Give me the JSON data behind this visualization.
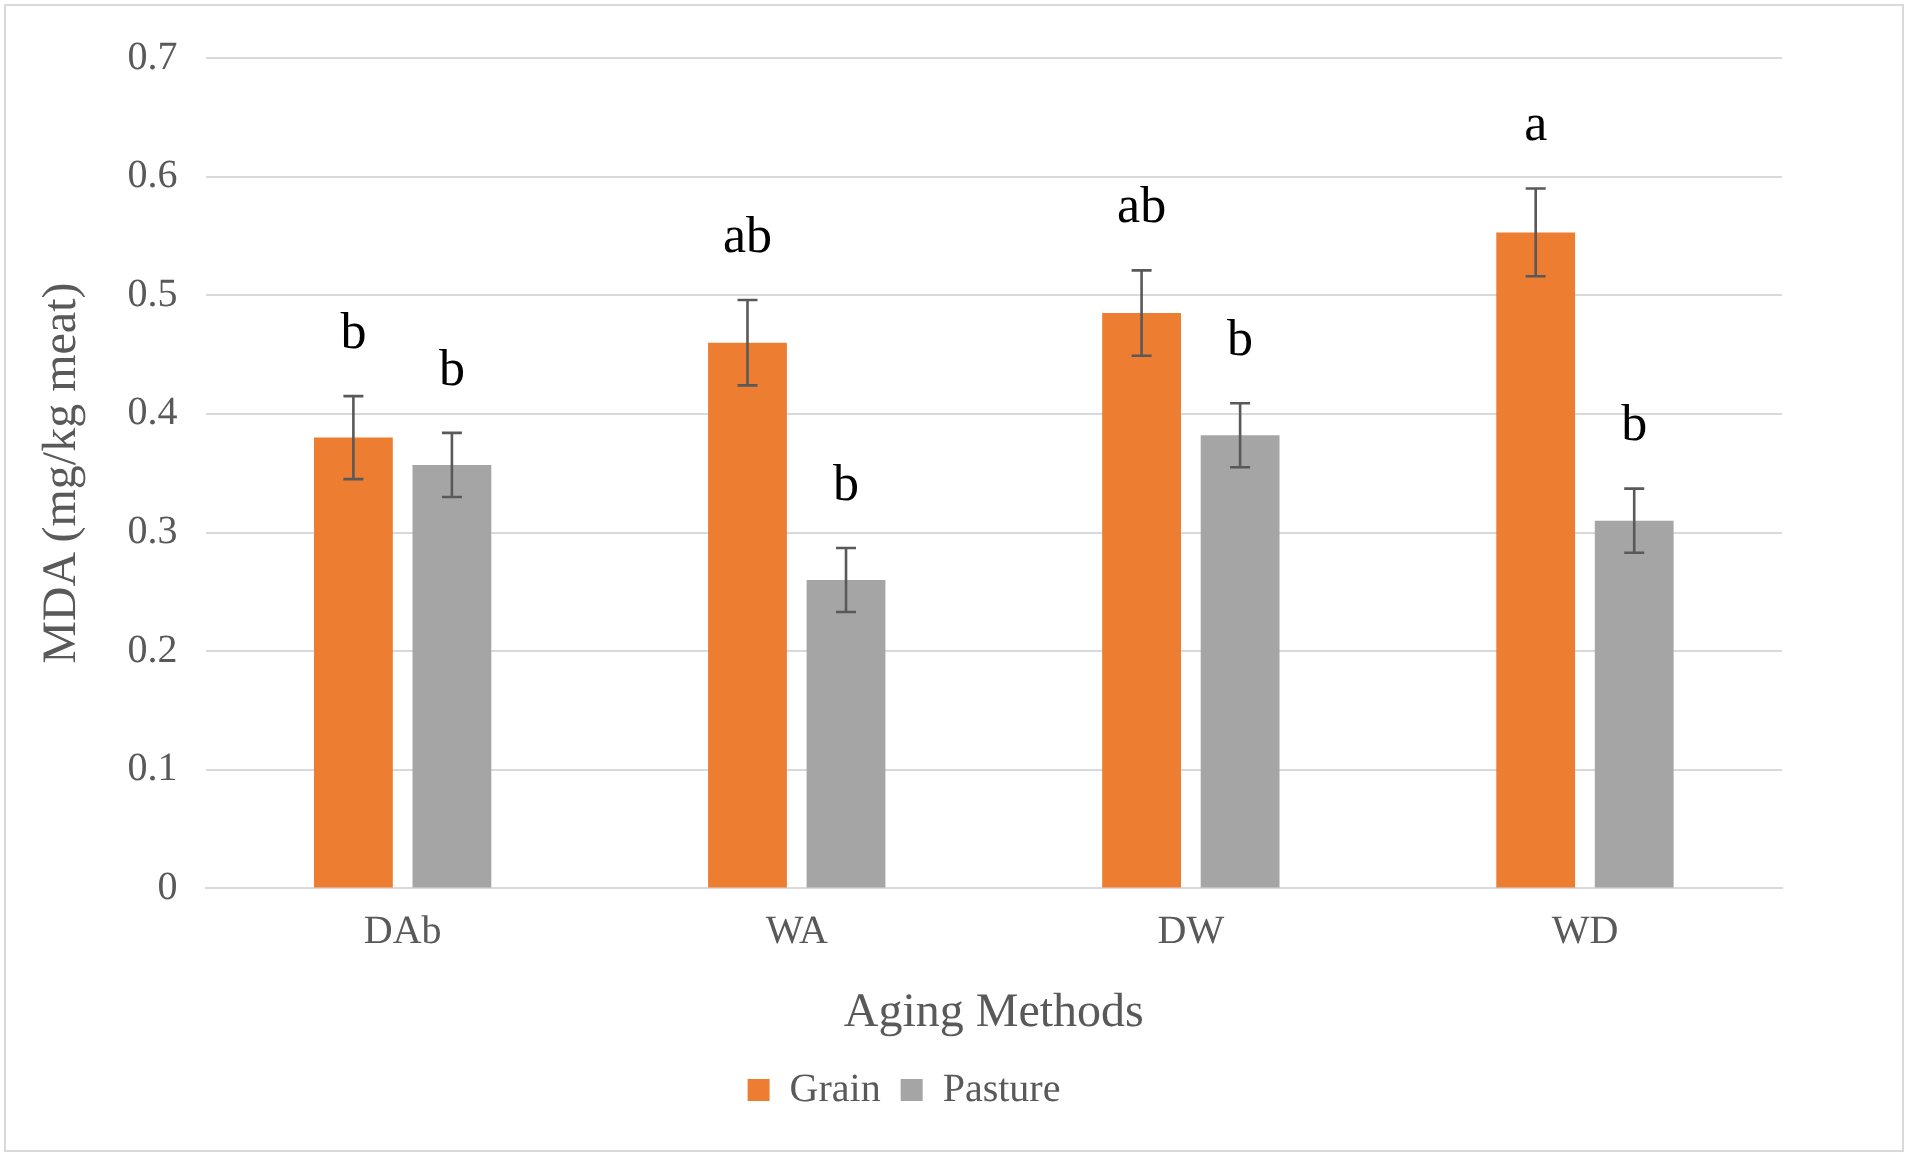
{
  "chart_data": {
    "type": "bar",
    "xlabel": "Aging Methods",
    "ylabel": "MDA (mg/kg meat)",
    "categories": [
      "DAb",
      "WA",
      "DW",
      "WD"
    ],
    "series": [
      {
        "name": "Grain",
        "color": "#ed7d31",
        "values": [
          0.38,
          0.46,
          0.485,
          0.553
        ],
        "errors": [
          0.035,
          0.036,
          0.036,
          0.037
        ]
      },
      {
        "name": "Pasture",
        "color": "#a5a5a5",
        "values": [
          0.357,
          0.26,
          0.382,
          0.31
        ],
        "errors": [
          0.027,
          0.027,
          0.027,
          0.027
        ]
      }
    ],
    "ylim": [
      0,
      0.7
    ],
    "yticks": [
      0,
      0.1,
      0.2,
      0.3,
      0.4,
      0.5,
      0.6,
      0.7
    ],
    "grid": "y",
    "legend": "bottom",
    "annotations": [
      "b",
      "b",
      "ab",
      "b",
      "ab",
      "b",
      "a",
      "b"
    ]
  }
}
